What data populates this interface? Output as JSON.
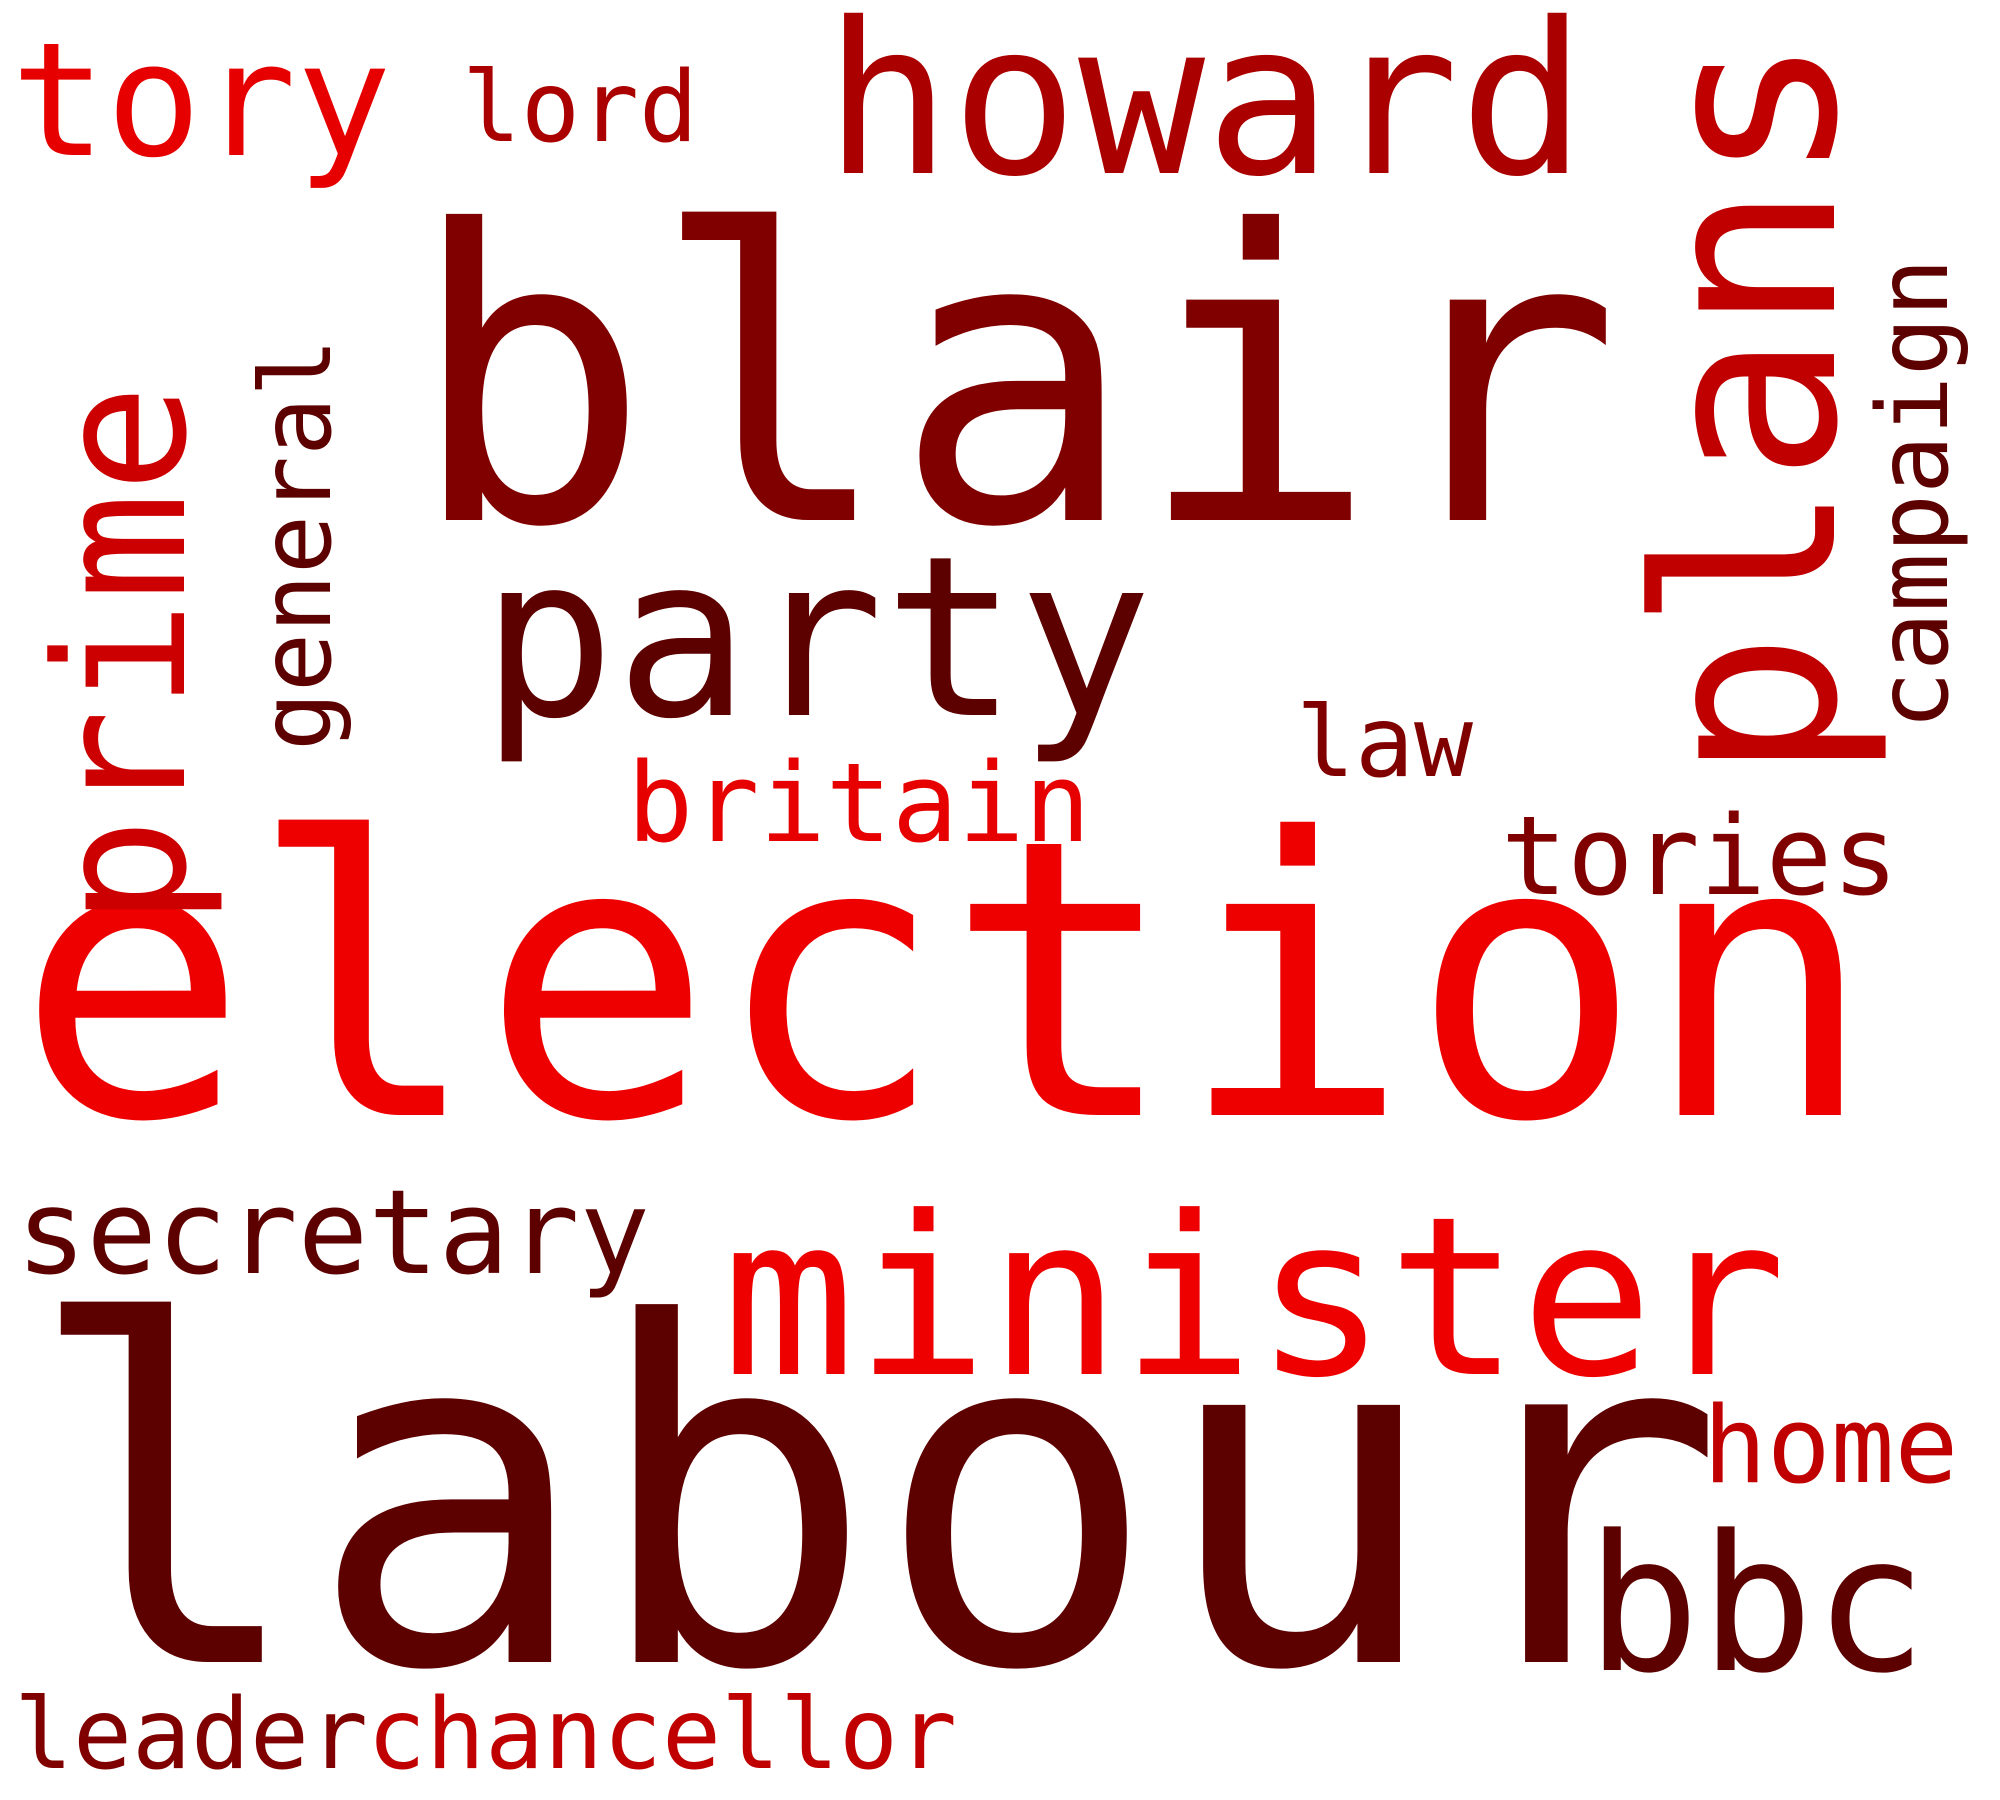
{
  "words": {
    "labour": {
      "text": "labour",
      "color": "#5c0000"
    },
    "election": {
      "text": "election",
      "color": "#ee0000"
    },
    "blair": {
      "text": "blair",
      "color": "#800000"
    },
    "party": {
      "text": "party",
      "color": "#5c0000"
    },
    "minister": {
      "text": "minister",
      "color": "#ee0000"
    },
    "plans": {
      "text": "plans",
      "color": "#c00000"
    },
    "howard": {
      "text": "howard",
      "color": "#aa0000"
    },
    "prime": {
      "text": "prime",
      "color": "#cc0000"
    },
    "tory": {
      "text": "tory",
      "color": "#e60000"
    },
    "bbc": {
      "text": "bbc",
      "color": "#5c0000"
    },
    "secretary": {
      "text": "secretary",
      "color": "#5c0000"
    },
    "tories": {
      "text": "tories",
      "color": "#800000"
    },
    "britain": {
      "text": "britain",
      "color": "#e60000"
    },
    "home": {
      "text": "home",
      "color": "#c00000"
    },
    "leader": {
      "text": "leader",
      "color": "#800000"
    },
    "chancellor": {
      "text": "chancellor",
      "color": "#c00000"
    },
    "general": {
      "text": "general",
      "color": "#5c0000"
    },
    "campaign": {
      "text": "campaign",
      "color": "#5c0000"
    },
    "lord": {
      "text": "lord",
      "color": "#aa0000"
    },
    "law": {
      "text": "law",
      "color": "#800000"
    }
  }
}
